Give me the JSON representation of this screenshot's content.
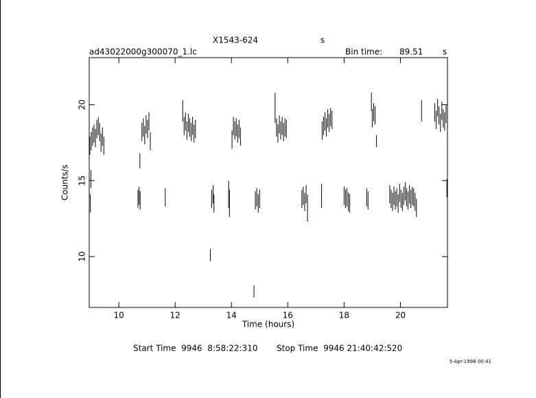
{
  "chart_data": {
    "type": "errorbar",
    "title": "X1543-624",
    "title_unit": "s",
    "subtitle": "ad43022000g300070_1.lc",
    "bin_time_label": "Bin time:",
    "bin_time": "89.51",
    "bin_time_unit": "s",
    "x_label": "Time (hours)",
    "y_label": "Counts/s",
    "start_time": "Start Time  9946  8:58:22:310",
    "stop_time": "Stop Time  9946 21:40:42:520",
    "date_stamp": "5-Apr-1998 00:41",
    "xlim": [
      8.95,
      21.67
    ],
    "ylim": [
      6.65,
      23.1
    ],
    "xticks": [
      10,
      12,
      14,
      16,
      18,
      20
    ],
    "yticks": [
      10,
      15,
      20
    ],
    "color": "#000000",
    "x": [
      8.97,
      9.02,
      9.07,
      9.12,
      9.17,
      9.22,
      9.27,
      9.32,
      9.37,
      9.42,
      9.47,
      8.99,
      9.01,
      10.68,
      10.72,
      10.76,
      10.75,
      10.82,
      10.87,
      10.92,
      10.97,
      11.02,
      11.07,
      11.12,
      11.65,
      12.27,
      12.32,
      12.37,
      12.42,
      12.47,
      12.52,
      12.57,
      12.62,
      12.67,
      12.72,
      13.25,
      13.3,
      13.35,
      13.38,
      13.9,
      13.93,
      14.02,
      14.07,
      14.12,
      14.17,
      14.22,
      14.27,
      14.32,
      14.8,
      14.85,
      14.9,
      14.95,
      15.0,
      15.55,
      15.6,
      15.65,
      15.7,
      15.75,
      15.8,
      15.85,
      15.9,
      15.95,
      16.5,
      16.55,
      16.6,
      16.65,
      16.7,
      17.2,
      17.22,
      17.27,
      17.32,
      17.37,
      17.42,
      17.47,
      17.52,
      17.57,
      18.0,
      18.05,
      18.1,
      18.15,
      18.2,
      18.8,
      18.85,
      18.97,
      19.0,
      19.05,
      19.1,
      19.15,
      19.62,
      19.67,
      19.72,
      19.77,
      19.82,
      19.87,
      19.92,
      19.97,
      20.02,
      20.07,
      20.12,
      20.17,
      20.22,
      20.27,
      20.32,
      20.37,
      20.42,
      20.47,
      20.52,
      20.57,
      20.75,
      21.22,
      21.27,
      21.32,
      21.37,
      21.42,
      21.47,
      21.52,
      21.57,
      21.62,
      21.65
    ],
    "values": [
      17.3,
      17.6,
      17.9,
      18.1,
      17.8,
      18.4,
      18.6,
      18.2,
      17.5,
      17.9,
      17.3,
      13.5,
      15.1,
      13.8,
      14.0,
      13.7,
      16.3,
      18.2,
      18.5,
      18.0,
      18.7,
      18.4,
      18.9,
      17.6,
      13.9,
      19.6,
      18.6,
      18.9,
      18.3,
      18.8,
      18.5,
      18.2,
      18.6,
      18.1,
      18.4,
      10.1,
      13.8,
      14.1,
      13.5,
      14.1,
      13.5,
      17.7,
      18.6,
      18.3,
      18.5,
      18.1,
      18.4,
      17.9,
      7.7,
      13.7,
      13.9,
      13.5,
      13.8,
      19.8,
      18.5,
      18.1,
      18.7,
      18.3,
      18.6,
      18.2,
      18.5,
      18.4,
      13.8,
      14.0,
      13.6,
      14.1,
      13.2,
      14.0,
      18.3,
      18.6,
      18.9,
      18.5,
      19.1,
      18.8,
      19.2,
      19.0,
      14.0,
      13.8,
      13.9,
      13.6,
      13.5,
      13.9,
      13.7,
      20.2,
      19.1,
      19.5,
      19.3,
      17.6,
      14.1,
      13.8,
      13.6,
      14.0,
      13.7,
      13.9,
      13.5,
      14.2,
      13.8,
      13.6,
      14.0,
      14.3,
      13.9,
      13.7,
      14.1,
      13.8,
      14.0,
      13.9,
      13.6,
      13.2,
      19.6,
      19.5,
      19.0,
      19.8,
      19.3,
      18.8,
      19.6,
      19.1,
      18.9,
      19.4,
      14.5
    ],
    "errors": [
      0.6,
      0.6,
      0.6,
      0.6,
      0.6,
      0.6,
      0.6,
      0.6,
      0.6,
      0.6,
      0.6,
      0.6,
      0.6,
      0.6,
      0.6,
      0.6,
      0.5,
      0.6,
      0.6,
      0.6,
      0.6,
      0.6,
      0.6,
      0.6,
      0.6,
      0.7,
      0.6,
      0.6,
      0.6,
      0.6,
      0.6,
      0.6,
      0.6,
      0.6,
      0.6,
      0.4,
      0.6,
      0.6,
      0.6,
      0.9,
      0.9,
      0.6,
      0.6,
      0.6,
      0.6,
      0.6,
      0.6,
      0.6,
      0.4,
      0.6,
      0.6,
      0.6,
      0.6,
      1.0,
      0.6,
      0.6,
      0.6,
      0.6,
      0.6,
      0.6,
      0.6,
      0.6,
      0.6,
      0.6,
      0.6,
      0.6,
      0.9,
      0.8,
      0.6,
      0.6,
      0.6,
      0.6,
      0.6,
      0.6,
      0.6,
      0.6,
      0.6,
      0.6,
      0.6,
      0.6,
      0.6,
      0.6,
      0.6,
      0.6,
      0.6,
      0.6,
      0.6,
      0.4,
      0.6,
      0.6,
      0.6,
      0.6,
      0.6,
      0.6,
      0.6,
      0.6,
      0.6,
      0.6,
      0.6,
      0.6,
      0.6,
      0.6,
      0.6,
      0.6,
      0.6,
      0.6,
      0.6,
      0.6,
      0.7,
      0.6,
      0.6,
      0.6,
      0.6,
      0.6,
      0.6,
      0.6,
      0.6,
      0.6,
      0.6
    ]
  }
}
